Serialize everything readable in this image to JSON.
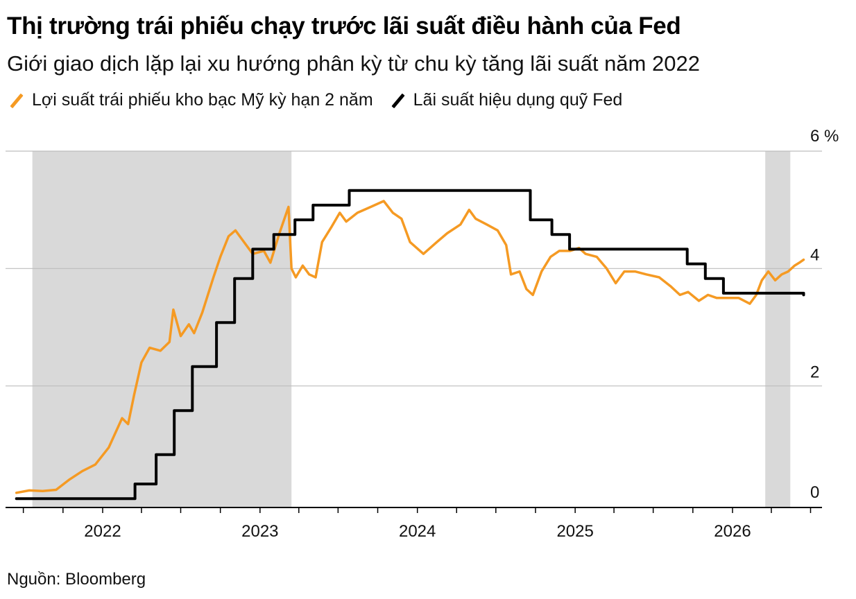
{
  "title": "Thị trường trái phiếu chạy trước lãi suất điều hành của Fed",
  "subtitle": "Giới giao dịch lặp lại xu hướng phân kỳ từ chu kỳ tăng lãi suất năm 2022",
  "source": "Nguồn: Bloomberg",
  "chart_data": {
    "type": "line",
    "title": "Thị trường trái phiếu chạy trước lãi suất điều hành của Fed",
    "subtitle": "Giới giao dịch lặp lại xu hướng phân kỳ từ chu kỳ tăng lãi suất năm 2022",
    "xlabel": "",
    "ylabel": "",
    "x_ticks": [
      "2022",
      "2023",
      "2024",
      "2025",
      "2026"
    ],
    "y_ticks": [
      {
        "value": 6,
        "label": "6 %"
      },
      {
        "value": 4,
        "label": "4"
      },
      {
        "value": 2,
        "label": "2"
      },
      {
        "value": 0,
        "label": "0"
      }
    ],
    "ylim": [
      0,
      6
    ],
    "xlim": [
      "2021-06-15",
      "2026-08-15"
    ],
    "y_axis_side": "right",
    "grid": "horizontal",
    "legend_position": "top-left",
    "shaded_periods": [
      {
        "start": "2021-07-01",
        "end": "2023-03-15"
      },
      {
        "start": "2026-02-25",
        "end": "2026-05-15"
      }
    ],
    "series": [
      {
        "name": "Lợi suất trái phiếu kho bạc Mỹ kỳ hạn 2 năm",
        "color": "#f59a23",
        "points": [
          [
            "2021-06-15",
            0.18
          ],
          [
            "2021-07-15",
            0.22
          ],
          [
            "2021-08-15",
            0.21
          ],
          [
            "2021-09-15",
            0.23
          ],
          [
            "2021-10-15",
            0.4
          ],
          [
            "2021-11-15",
            0.55
          ],
          [
            "2021-12-15",
            0.66
          ],
          [
            "2022-01-15",
            0.95
          ],
          [
            "2022-02-15",
            1.45
          ],
          [
            "2022-03-01",
            1.35
          ],
          [
            "2022-03-15",
            1.85
          ],
          [
            "2022-04-01",
            2.4
          ],
          [
            "2022-04-20",
            2.65
          ],
          [
            "2022-05-15",
            2.6
          ],
          [
            "2022-06-05",
            2.75
          ],
          [
            "2022-06-14",
            3.3
          ],
          [
            "2022-07-01",
            2.85
          ],
          [
            "2022-07-20",
            3.05
          ],
          [
            "2022-08-01",
            2.9
          ],
          [
            "2022-08-20",
            3.25
          ],
          [
            "2022-09-15",
            3.85
          ],
          [
            "2022-10-01",
            4.2
          ],
          [
            "2022-10-20",
            4.55
          ],
          [
            "2022-11-05",
            4.65
          ],
          [
            "2022-11-20",
            4.5
          ],
          [
            "2022-12-15",
            4.25
          ],
          [
            "2023-01-10",
            4.3
          ],
          [
            "2023-01-25",
            4.1
          ],
          [
            "2023-02-15",
            4.6
          ],
          [
            "2023-03-08",
            5.05
          ],
          [
            "2023-03-15",
            4.0
          ],
          [
            "2023-03-25",
            3.85
          ],
          [
            "2023-04-10",
            4.05
          ],
          [
            "2023-04-25",
            3.9
          ],
          [
            "2023-05-10",
            3.85
          ],
          [
            "2023-05-25",
            4.45
          ],
          [
            "2023-06-15",
            4.7
          ],
          [
            "2023-07-05",
            4.95
          ],
          [
            "2023-07-20",
            4.8
          ],
          [
            "2023-08-15",
            4.95
          ],
          [
            "2023-09-15",
            5.05
          ],
          [
            "2023-10-15",
            5.15
          ],
          [
            "2023-11-05",
            4.95
          ],
          [
            "2023-11-25",
            4.85
          ],
          [
            "2023-12-15",
            4.45
          ],
          [
            "2024-01-15",
            4.25
          ],
          [
            "2024-02-15",
            4.45
          ],
          [
            "2024-03-10",
            4.6
          ],
          [
            "2024-04-10",
            4.75
          ],
          [
            "2024-04-30",
            5.0
          ],
          [
            "2024-05-15",
            4.85
          ],
          [
            "2024-06-10",
            4.75
          ],
          [
            "2024-07-05",
            4.65
          ],
          [
            "2024-07-25",
            4.4
          ],
          [
            "2024-08-05",
            3.9
          ],
          [
            "2024-08-25",
            3.95
          ],
          [
            "2024-09-10",
            3.65
          ],
          [
            "2024-09-25",
            3.55
          ],
          [
            "2024-10-15",
            3.95
          ],
          [
            "2024-11-05",
            4.2
          ],
          [
            "2024-11-25",
            4.3
          ],
          [
            "2024-12-20",
            4.3
          ],
          [
            "2025-01-10",
            4.35
          ],
          [
            "2025-01-25",
            4.25
          ],
          [
            "2025-02-20",
            4.2
          ],
          [
            "2025-03-15",
            4.0
          ],
          [
            "2025-04-05",
            3.75
          ],
          [
            "2025-04-25",
            3.95
          ],
          [
            "2025-05-20",
            3.95
          ],
          [
            "2025-06-15",
            3.9
          ],
          [
            "2025-07-15",
            3.85
          ],
          [
            "2025-08-10",
            3.7
          ],
          [
            "2025-09-01",
            3.55
          ],
          [
            "2025-09-20",
            3.6
          ],
          [
            "2025-10-15",
            3.45
          ],
          [
            "2025-11-05",
            3.55
          ],
          [
            "2025-11-25",
            3.5
          ],
          [
            "2025-12-20",
            3.5
          ],
          [
            "2026-01-15",
            3.5
          ],
          [
            "2026-02-10",
            3.4
          ],
          [
            "2026-02-25",
            3.55
          ],
          [
            "2026-03-10",
            3.8
          ],
          [
            "2026-03-25",
            3.95
          ],
          [
            "2026-04-10",
            3.8
          ],
          [
            "2026-04-25",
            3.9
          ],
          [
            "2026-05-10",
            3.95
          ],
          [
            "2026-05-25",
            4.05
          ],
          [
            "2026-06-05",
            4.1
          ],
          [
            "2026-06-15",
            4.15
          ]
        ]
      },
      {
        "name": "Lãi suất hiệu dụng quỹ Fed",
        "color": "#000000",
        "step": true,
        "points": [
          [
            "2021-06-15",
            0.08
          ],
          [
            "2022-03-17",
            0.33
          ],
          [
            "2022-05-05",
            0.83
          ],
          [
            "2022-06-16",
            1.58
          ],
          [
            "2022-07-28",
            2.33
          ],
          [
            "2022-09-22",
            3.08
          ],
          [
            "2022-11-03",
            3.83
          ],
          [
            "2022-12-15",
            4.33
          ],
          [
            "2023-02-02",
            4.58
          ],
          [
            "2023-03-23",
            4.83
          ],
          [
            "2023-05-04",
            5.08
          ],
          [
            "2023-07-27",
            5.33
          ],
          [
            "2024-09-19",
            4.83
          ],
          [
            "2024-11-08",
            4.58
          ],
          [
            "2024-12-19",
            4.33
          ],
          [
            "2025-09-18",
            4.08
          ],
          [
            "2025-10-30",
            3.83
          ],
          [
            "2025-12-11",
            3.58
          ],
          [
            "2026-06-15",
            3.55
          ]
        ]
      }
    ]
  }
}
